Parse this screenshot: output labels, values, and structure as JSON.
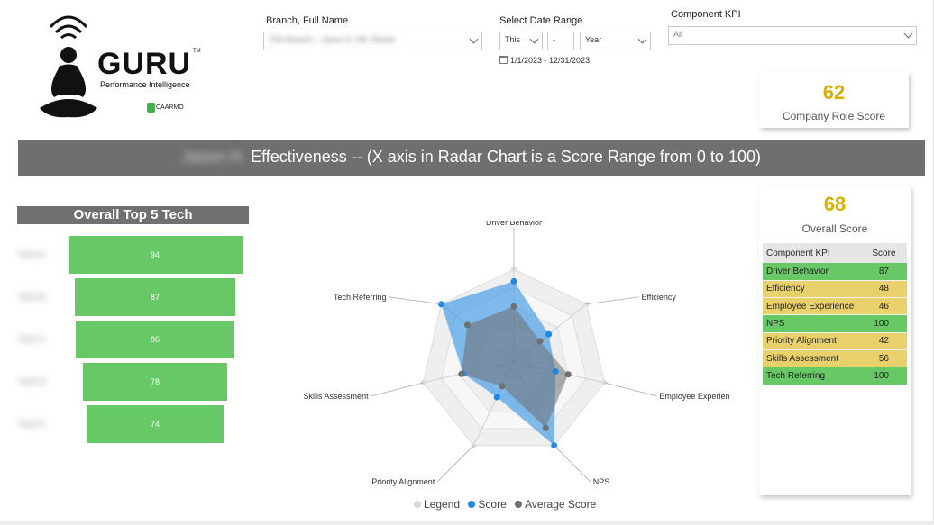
{
  "logo": {
    "word": "GURU",
    "tm": "TM",
    "subtitle": "Performance Intelligence",
    "brand": "CAARMO",
    "by": "by"
  },
  "filters": {
    "branch": {
      "label": "Branch, Full Name",
      "value": "TSS Branch – Jason D. Hill, Rasha"
    },
    "date": {
      "label": "Select Date Range",
      "mode": "This",
      "count": "-",
      "unit": "Year",
      "range": "1/1/2023 - 12/31/2023"
    },
    "kpi": {
      "label": "Component KPI",
      "value": "All"
    }
  },
  "company_role_card": {
    "value": "62",
    "label": "Company  Role Score"
  },
  "overall_card": {
    "value": "68",
    "label": "Overall Score"
  },
  "banner": {
    "name": "Jason H.",
    "text": "Effectiveness -- (X axis in Radar Chart is a Score Range from 0 to 100)"
  },
  "top5": {
    "title": "Overall Top 5 Tech",
    "items": [
      {
        "name": "Tech A",
        "value": 94
      },
      {
        "name": "Tech B",
        "value": 87
      },
      {
        "name": "Tech C",
        "value": 86
      },
      {
        "name": "Tech D",
        "value": 78
      },
      {
        "name": "Tech E",
        "value": 74
      }
    ]
  },
  "kpi_table": {
    "headers": [
      "Component KPI",
      "Score"
    ],
    "rows": [
      {
        "kpi": "Driver Behavior",
        "score": "87",
        "status": "green"
      },
      {
        "kpi": "Efficiency",
        "score": "48",
        "status": "yellow"
      },
      {
        "kpi": "Employee Experience",
        "score": "46",
        "status": "yellow"
      },
      {
        "kpi": "NPS",
        "score": "100",
        "status": "green"
      },
      {
        "kpi": "Priority Alignment",
        "score": "42",
        "status": "yellow"
      },
      {
        "kpi": "Skills Assessment",
        "score": "56",
        "status": "yellow"
      },
      {
        "kpi": "Tech Referring",
        "score": "100",
        "status": "green"
      }
    ]
  },
  "colors": {
    "green": "#66c966",
    "yellow": "#e8d06a",
    "score": "#1e88e5",
    "average": "#707070",
    "legend": "#d9d9d9",
    "gold": "#d8b000"
  },
  "chart_data": {
    "type": "radar",
    "categories": [
      "Driver Behavior",
      "Efficiency",
      "Employee Experience",
      "NPS",
      "Priority Alignment",
      "Skills Assessment",
      "Tech Referring"
    ],
    "rmax": 100,
    "series": [
      {
        "name": "Score",
        "values": [
          87,
          48,
          46,
          100,
          42,
          56,
          100
        ]
      },
      {
        "name": "Average Score",
        "values": [
          60,
          36,
          60,
          79,
          29,
          58,
          64
        ]
      }
    ],
    "legend": [
      "Legend",
      "Score",
      "Average Score"
    ]
  }
}
